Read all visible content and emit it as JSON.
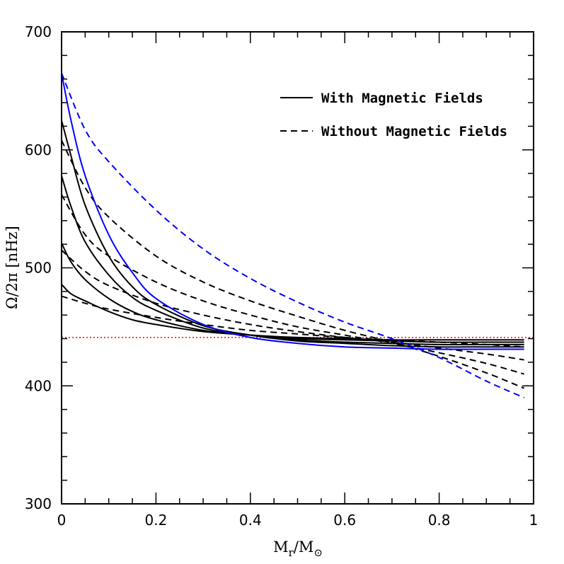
{
  "chart_data": {
    "type": "line",
    "xlabel": {
      "base": "M",
      "sub1": "r",
      "slash": "/",
      "base2": "M",
      "sub2": "⊙"
    },
    "ylabel": {
      "main": "Ω/2π ",
      "unit": "[nHz]"
    },
    "xlim": [
      0,
      1
    ],
    "ylim": [
      300,
      700
    ],
    "xticks": [
      0,
      0.2,
      0.4,
      0.6,
      0.8,
      1
    ],
    "xtick_labels": [
      "0",
      "0.2",
      "0.4",
      "0.6",
      "0.8",
      "1"
    ],
    "yticks": [
      300,
      400,
      500,
      600,
      700
    ],
    "ytick_labels": [
      "300",
      "400",
      "500",
      "600",
      "700"
    ],
    "x_minor_step": 0.05,
    "y_minor_step": 20,
    "legend": {
      "placement": "top-right",
      "entries": [
        {
          "label": "With Magnetic Fields",
          "style": "solid"
        },
        {
          "label": "Without Magnetic Fields",
          "style": "dashed"
        }
      ]
    },
    "reference_line": {
      "y": 441,
      "color": "#ff0000",
      "style": "dotted"
    },
    "series": [
      {
        "name": "with-field-1",
        "style": "solid",
        "color": "#000000",
        "x": [
          0,
          0.02,
          0.05,
          0.1,
          0.15,
          0.2,
          0.3,
          0.4,
          0.5,
          0.6,
          0.7,
          0.8,
          0.9,
          0.98
        ],
        "values": [
          486,
          478,
          472,
          463,
          456,
          452,
          446,
          443,
          441,
          440,
          439,
          439,
          439,
          439
        ]
      },
      {
        "name": "with-field-2",
        "style": "solid",
        "color": "#000000",
        "x": [
          0,
          0.02,
          0.05,
          0.1,
          0.15,
          0.2,
          0.3,
          0.4,
          0.5,
          0.6,
          0.7,
          0.8,
          0.9,
          0.98
        ],
        "values": [
          521,
          505,
          490,
          474,
          463,
          456,
          447,
          443,
          440,
          439,
          438,
          437,
          437,
          437
        ]
      },
      {
        "name": "with-field-3",
        "style": "solid",
        "color": "#000000",
        "x": [
          0,
          0.02,
          0.05,
          0.1,
          0.15,
          0.2,
          0.3,
          0.4,
          0.5,
          0.6,
          0.7,
          0.8,
          0.9,
          0.98
        ],
        "values": [
          578,
          552,
          522,
          494,
          475,
          464,
          449,
          443,
          439,
          437,
          436,
          435,
          435,
          435
        ]
      },
      {
        "name": "with-field-4",
        "style": "solid",
        "color": "#000000",
        "x": [
          0,
          0.02,
          0.05,
          0.1,
          0.15,
          0.2,
          0.3,
          0.4,
          0.5,
          0.6,
          0.7,
          0.8,
          0.9,
          0.98
        ],
        "values": [
          625,
          595,
          553,
          510,
          484,
          469,
          451,
          443,
          438,
          436,
          434,
          433,
          433,
          433
        ]
      },
      {
        "name": "with-field-blue",
        "style": "solid",
        "color": "#0000ff",
        "x": [
          0,
          0.02,
          0.05,
          0.1,
          0.15,
          0.2,
          0.3,
          0.4,
          0.5,
          0.6,
          0.7,
          0.8,
          0.9,
          0.98
        ],
        "values": [
          665,
          625,
          578,
          528,
          496,
          474,
          452,
          441,
          436,
          433,
          432,
          431,
          431,
          431
        ]
      },
      {
        "name": "without-field-1",
        "style": "dashed",
        "color": "#000000",
        "x": [
          0,
          0.05,
          0.1,
          0.2,
          0.3,
          0.4,
          0.5,
          0.6,
          0.7,
          0.8,
          0.9,
          0.98
        ],
        "values": [
          476,
          470,
          465,
          458,
          452,
          447,
          444,
          441,
          439,
          437,
          435,
          433
        ]
      },
      {
        "name": "without-field-2",
        "style": "dashed",
        "color": "#000000",
        "x": [
          0,
          0.05,
          0.1,
          0.2,
          0.3,
          0.4,
          0.5,
          0.6,
          0.7,
          0.8,
          0.9,
          0.98
        ],
        "values": [
          515,
          497,
          485,
          470,
          460,
          452,
          446,
          441,
          437,
          432,
          427,
          422
        ]
      },
      {
        "name": "without-field-3",
        "style": "dashed",
        "color": "#000000",
        "x": [
          0,
          0.05,
          0.1,
          0.2,
          0.3,
          0.4,
          0.5,
          0.6,
          0.7,
          0.8,
          0.9,
          0.98
        ],
        "values": [
          562,
          528,
          510,
          488,
          472,
          460,
          450,
          443,
          436,
          428,
          419,
          410
        ]
      },
      {
        "name": "without-field-4",
        "style": "dashed",
        "color": "#000000",
        "x": [
          0,
          0.05,
          0.1,
          0.2,
          0.3,
          0.4,
          0.5,
          0.6,
          0.7,
          0.8,
          0.9,
          0.98
        ],
        "values": [
          608,
          568,
          543,
          510,
          488,
          472,
          459,
          447,
          437,
          425,
          411,
          398
        ]
      },
      {
        "name": "without-field-blue",
        "style": "dashed",
        "color": "#0000ff",
        "x": [
          0,
          0.05,
          0.1,
          0.2,
          0.3,
          0.4,
          0.5,
          0.6,
          0.7,
          0.8,
          0.9,
          0.98
        ],
        "values": [
          665,
          617,
          590,
          549,
          516,
          491,
          471,
          454,
          440,
          424,
          404,
          390
        ]
      }
    ]
  }
}
